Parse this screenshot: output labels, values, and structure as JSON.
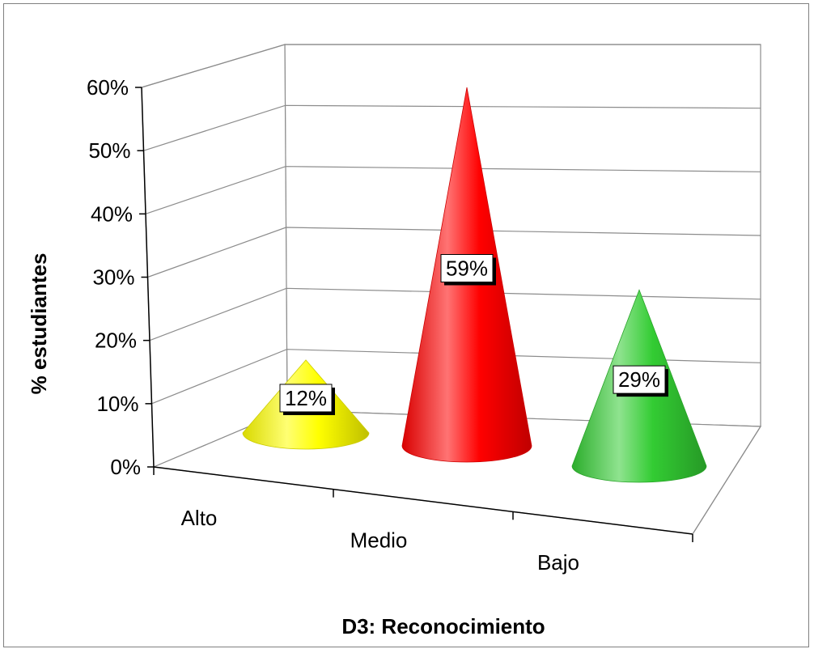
{
  "chart_data": {
    "type": "bar",
    "style": "3d-cone",
    "categories": [
      "Alto",
      "Medio",
      "Bajo"
    ],
    "values": [
      12,
      59,
      29
    ],
    "data_labels": [
      "12%",
      "59%",
      "29%"
    ],
    "colors": [
      "#ffff00",
      "#ff0000",
      "#33cc33"
    ],
    "xlabel": "D3: Reconocimiento",
    "ylabel": "% estudiantes",
    "ylim": [
      0,
      60
    ],
    "yticks": [
      "0%",
      "10%",
      "20%",
      "30%",
      "40%",
      "50%",
      "60%"
    ],
    "grid": true,
    "legend": "none"
  }
}
